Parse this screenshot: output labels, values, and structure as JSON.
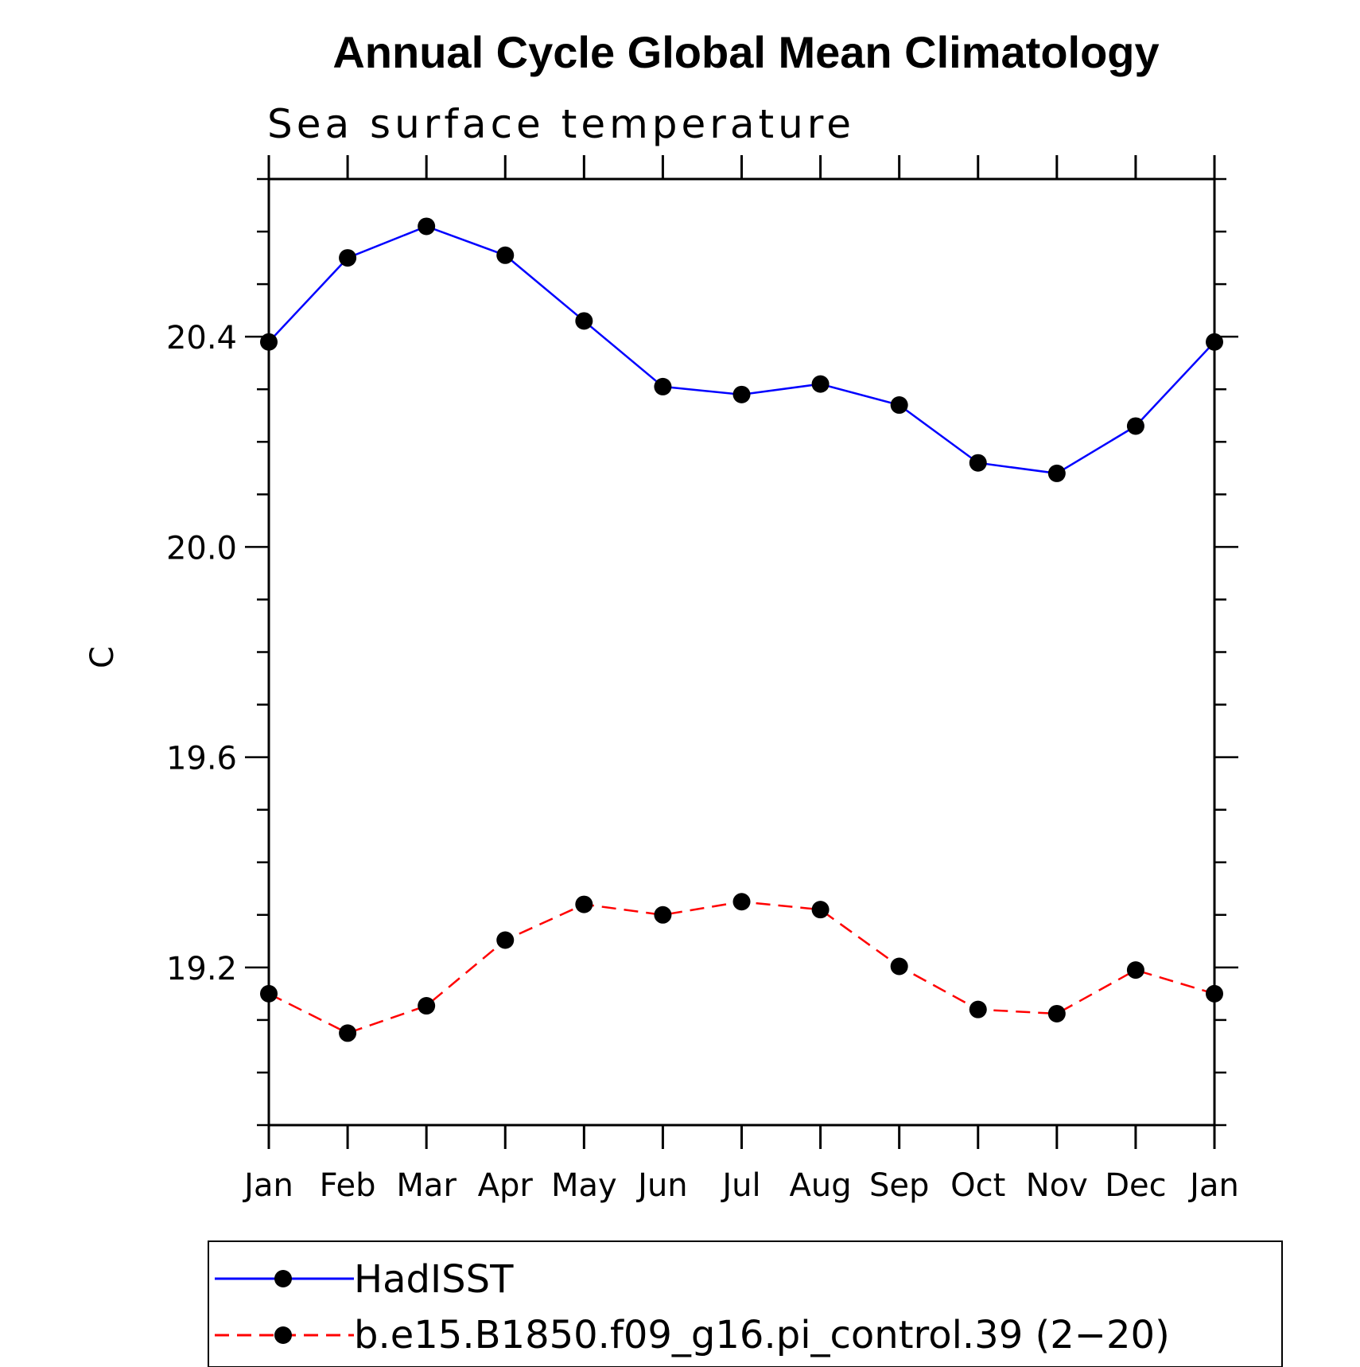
{
  "chart_data": {
    "type": "line",
    "title": "Annual Cycle Global Mean Climatology",
    "subtitle": "Sea surface temperature",
    "xlabel": "",
    "ylabel": "C",
    "categories": [
      "Jan",
      "Feb",
      "Mar",
      "Apr",
      "May",
      "Jun",
      "Jul",
      "Aug",
      "Sep",
      "Oct",
      "Nov",
      "Dec",
      "Jan"
    ],
    "ylim": [
      18.9,
      20.7
    ],
    "yticks": [
      "20.4",
      "20.0",
      "19.6",
      "19.2"
    ],
    "grid": false,
    "legend_position": "bottom",
    "series": [
      {
        "name": "HadISST",
        "color": "#0000ff",
        "style": "solid",
        "marker": "circle",
        "values": [
          20.39,
          20.55,
          20.61,
          20.555,
          20.43,
          20.305,
          20.29,
          20.31,
          20.27,
          20.16,
          20.14,
          20.23,
          20.39
        ]
      },
      {
        "name": "b.e15.B1850.f09_g16.pi_control.39 (2−20)",
        "color": "#ff0000",
        "style": "dashed",
        "marker": "circle",
        "values": [
          19.15,
          19.075,
          19.127,
          19.252,
          19.32,
          19.3,
          19.325,
          19.31,
          19.202,
          19.12,
          19.112,
          19.195,
          19.15
        ]
      }
    ]
  }
}
